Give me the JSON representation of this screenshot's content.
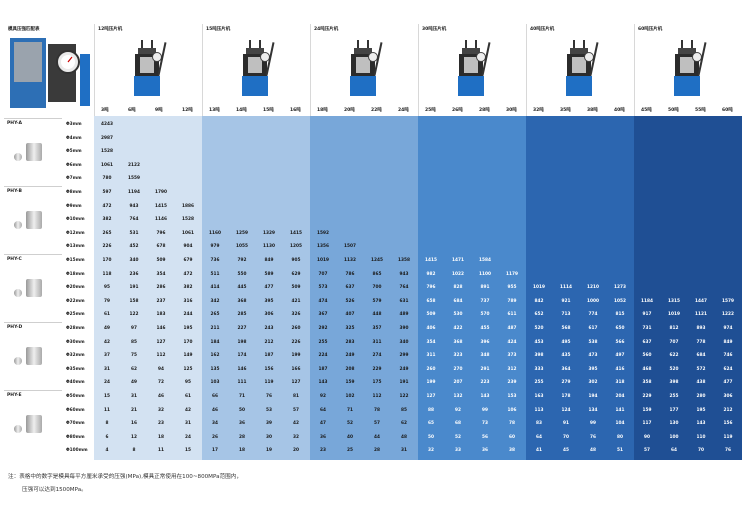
{
  "table_title": "模具压强匹配表",
  "presses": [
    {
      "name": "12吨压片机",
      "tons": [
        "3吨",
        "6吨",
        "9吨",
        "12吨"
      ]
    },
    {
      "name": "15吨压片机",
      "tons": [
        "13吨",
        "14吨",
        "15吨",
        "16吨"
      ]
    },
    {
      "name": "24吨压片机",
      "tons": [
        "18吨",
        "20吨",
        "22吨",
        "24吨"
      ]
    },
    {
      "name": "30吨压片机",
      "tons": [
        "25吨",
        "26吨",
        "28吨",
        "30吨"
      ]
    },
    {
      "name": "40吨压片机",
      "tons": [
        "32吨",
        "35吨",
        "38吨",
        "40吨"
      ]
    },
    {
      "name": "60吨压片机",
      "tons": [
        "45吨",
        "50吨",
        "55吨",
        "60吨"
      ]
    }
  ],
  "dies": [
    {
      "name": "PHY-A",
      "sizes": [
        "Φ3mm",
        "Φ4mm",
        "Φ5mm",
        "Φ6mm",
        "Φ7mm"
      ]
    },
    {
      "name": "PHY-B",
      "sizes": [
        "Φ8mm",
        "Φ9mm",
        "Φ10mm",
        "Φ12mm",
        "Φ13mm"
      ]
    },
    {
      "name": "PHY-C",
      "sizes": [
        "Φ15mm",
        "Φ18mm",
        "Φ20mm",
        "Φ22mm",
        "Φ25mm"
      ]
    },
    {
      "name": "PHY-D",
      "sizes": [
        "Φ28mm",
        "Φ30mm",
        "Φ32mm",
        "Φ35mm",
        "Φ40mm"
      ]
    },
    {
      "name": "PHY-E",
      "sizes": [
        "Φ50mm",
        "Φ60mm",
        "Φ70mm",
        "Φ80mm",
        "Φ100mm"
      ]
    }
  ],
  "rows": [
    [
      "4243"
    ],
    [
      "2987"
    ],
    [
      "1528"
    ],
    [
      "1061",
      "2122"
    ],
    [
      "780",
      "1559"
    ],
    [
      "597",
      "1194",
      "1790"
    ],
    [
      "472",
      "943",
      "1415",
      "1886"
    ],
    [
      "382",
      "764",
      "1146",
      "1528"
    ],
    [
      "265",
      "531",
      "796",
      "1061",
      "1160",
      "1259",
      "1329",
      "1415",
      "1592"
    ],
    [
      "226",
      "452",
      "678",
      "904",
      "979",
      "1055",
      "1130",
      "1205",
      "1356",
      "1507"
    ],
    [
      "170",
      "340",
      "509",
      "679",
      "736",
      "792",
      "849",
      "905",
      "1019",
      "1132",
      "1245",
      "1358",
      "1415",
      "1471",
      "1584"
    ],
    [
      "118",
      "236",
      "354",
      "472",
      "511",
      "550",
      "589",
      "629",
      "707",
      "786",
      "865",
      "943",
      "982",
      "1022",
      "1100",
      "1179"
    ],
    [
      "95",
      "191",
      "286",
      "382",
      "414",
      "445",
      "477",
      "509",
      "573",
      "637",
      "700",
      "764",
      "796",
      "828",
      "891",
      "955",
      "1019",
      "1114",
      "1210",
      "1273"
    ],
    [
      "79",
      "158",
      "237",
      "316",
      "342",
      "368",
      "395",
      "421",
      "474",
      "526",
      "579",
      "631",
      "658",
      "684",
      "737",
      "789",
      "842",
      "921",
      "1000",
      "1052",
      "1184",
      "1315",
      "1447",
      "1579"
    ],
    [
      "61",
      "122",
      "183",
      "244",
      "265",
      "285",
      "306",
      "326",
      "367",
      "407",
      "448",
      "489",
      "509",
      "530",
      "570",
      "611",
      "652",
      "713",
      "774",
      "815",
      "917",
      "1019",
      "1121",
      "1222"
    ],
    [
      "49",
      "97",
      "146",
      "195",
      "211",
      "227",
      "243",
      "260",
      "292",
      "325",
      "357",
      "390",
      "406",
      "422",
      "455",
      "487",
      "520",
      "568",
      "617",
      "650",
      "731",
      "812",
      "893",
      "974"
    ],
    [
      "42",
      "85",
      "127",
      "170",
      "184",
      "198",
      "212",
      "226",
      "255",
      "283",
      "311",
      "340",
      "354",
      "368",
      "396",
      "424",
      "453",
      "495",
      "538",
      "566",
      "637",
      "707",
      "778",
      "849"
    ],
    [
      "37",
      "75",
      "112",
      "149",
      "162",
      "174",
      "187",
      "199",
      "224",
      "249",
      "274",
      "299",
      "311",
      "323",
      "348",
      "373",
      "398",
      "435",
      "473",
      "497",
      "560",
      "622",
      "684",
      "746"
    ],
    [
      "31",
      "62",
      "94",
      "125",
      "135",
      "146",
      "156",
      "166",
      "187",
      "208",
      "229",
      "249",
      "260",
      "270",
      "291",
      "312",
      "333",
      "364",
      "395",
      "416",
      "468",
      "520",
      "572",
      "624"
    ],
    [
      "24",
      "49",
      "72",
      "95",
      "103",
      "111",
      "119",
      "127",
      "143",
      "159",
      "175",
      "191",
      "199",
      "207",
      "223",
      "239",
      "255",
      "279",
      "302",
      "318",
      "358",
      "398",
      "438",
      "477"
    ],
    [
      "15",
      "31",
      "46",
      "61",
      "66",
      "71",
      "76",
      "81",
      "92",
      "102",
      "112",
      "122",
      "127",
      "132",
      "143",
      "153",
      "163",
      "178",
      "194",
      "204",
      "229",
      "255",
      "280",
      "306"
    ],
    [
      "11",
      "21",
      "32",
      "42",
      "46",
      "50",
      "53",
      "57",
      "64",
      "71",
      "78",
      "85",
      "88",
      "92",
      "99",
      "106",
      "113",
      "124",
      "134",
      "141",
      "159",
      "177",
      "195",
      "212"
    ],
    [
      "8",
      "16",
      "23",
      "31",
      "34",
      "36",
      "39",
      "42",
      "47",
      "52",
      "57",
      "62",
      "65",
      "68",
      "73",
      "78",
      "83",
      "91",
      "99",
      "104",
      "117",
      "130",
      "143",
      "156"
    ],
    [
      "6",
      "12",
      "18",
      "24",
      "26",
      "28",
      "30",
      "32",
      "36",
      "40",
      "44",
      "48",
      "50",
      "52",
      "56",
      "60",
      "64",
      "70",
      "76",
      "80",
      "90",
      "100",
      "110",
      "119"
    ],
    [
      "4",
      "8",
      "11",
      "15",
      "17",
      "18",
      "19",
      "20",
      "23",
      "25",
      "28",
      "31",
      "32",
      "33",
      "36",
      "38",
      "41",
      "45",
      "48",
      "51",
      "57",
      "64",
      "70",
      "76"
    ]
  ],
  "note_line1": "注：表格中的数字是模具每平方厘米承受的压强(MPa),模具正常使用在100~800MPa范围内，",
  "note_line2": "压强可以达到1500MPa。"
}
